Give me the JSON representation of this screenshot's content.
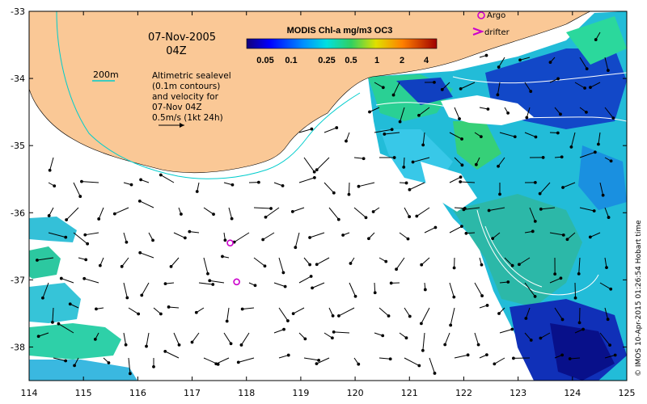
{
  "map": {
    "date": "07-Nov-2005",
    "time": "04Z",
    "depth_contour_label": "200m",
    "description_lines": [
      "Altimetric sealevel",
      "(0.1m contours)",
      "and velocity for",
      "07-Nov 04Z",
      "0.5m/s (1kt 24h)"
    ],
    "colorbar": {
      "title": "MODIS Chl-a mg/m3 OC3",
      "tick_labels": [
        "0.05",
        "0.1",
        "0.25",
        "0.5",
        "1",
        "2",
        "4"
      ]
    },
    "legend": {
      "argo_label": "Argo",
      "drifter_label": "drifter",
      "argo_color": "#cc00cc"
    },
    "credit": "© IMOS 10-Apr-2015 01:26:54 Hobart time",
    "x_axis_labels": [
      "114",
      "115",
      "116",
      "117",
      "118",
      "119",
      "120",
      "121",
      "122",
      "123",
      "124",
      "125"
    ],
    "y_axis_labels": [
      "-33",
      "-34",
      "-35",
      "-36",
      "-37",
      "-38"
    ],
    "colors": {
      "land": "#fac896",
      "contour_200m": "#00cccc",
      "argo": "#cc00cc"
    }
  },
  "chart_data": {
    "type": "map",
    "lon_range": [
      114,
      125
    ],
    "lat_range": [
      -38.5,
      -33
    ],
    "argo_floats": [
      {
        "lon": 117.7,
        "lat": -36.45
      },
      {
        "lon": 117.82,
        "lat": -37.03
      }
    ]
  }
}
